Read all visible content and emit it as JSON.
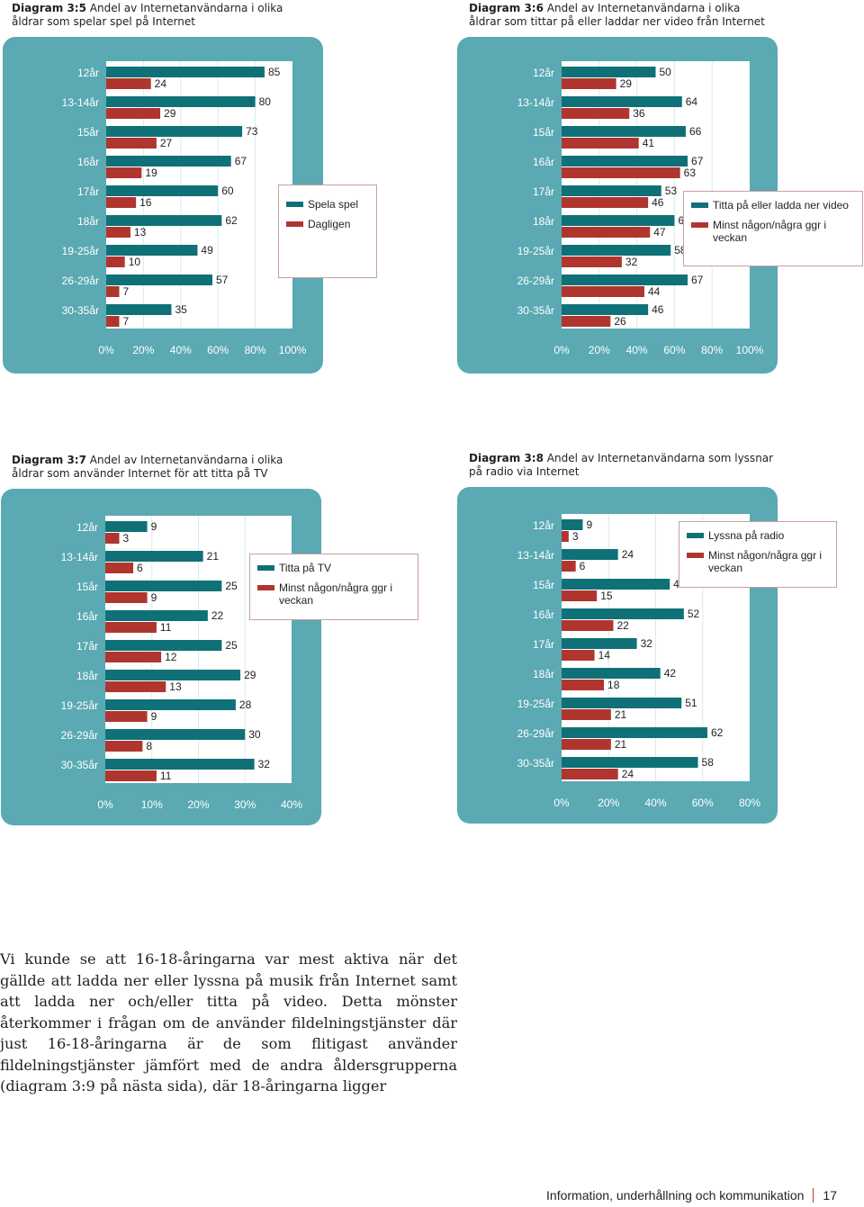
{
  "colors": {
    "panel": "#5aa9b3",
    "plot_bg": "#ffffff",
    "teal": "#0f7177",
    "red": "#b0352f",
    "grid": "#d7ebee"
  },
  "chart_data": [
    {
      "id": "c35",
      "type": "bar",
      "title_bold": "Diagram 3:5",
      "title_rest": " Andel av Internetanvändarna i olika åldrar som spelar spel på Internet",
      "categories": [
        "12år",
        "13-14år",
        "15år",
        "16år",
        "17år",
        "18år",
        "19-25år",
        "26-29år",
        "30-35år"
      ],
      "series": [
        {
          "name": "Spela spel",
          "values": [
            85,
            80,
            73,
            67,
            60,
            62,
            49,
            57,
            35
          ]
        },
        {
          "name": "Dagligen",
          "values": [
            24,
            29,
            27,
            19,
            16,
            13,
            10,
            7,
            7
          ]
        }
      ],
      "xlim": [
        0,
        100
      ],
      "ticks": [
        "0%",
        "20%",
        "40%",
        "60%",
        "80%",
        "100%"
      ],
      "legend_placement": "right"
    },
    {
      "id": "c36",
      "type": "bar",
      "title_bold": "Diagram 3:6",
      "title_rest": " Andel av Internetanvändarna i olika åldrar som tittar på eller laddar ner video från Internet",
      "categories": [
        "12år",
        "13-14år",
        "15år",
        "16år",
        "17år",
        "18år",
        "19-25år",
        "26-29år",
        "30-35år"
      ],
      "series": [
        {
          "name": "Titta på eller ladda ner video",
          "values": [
            50,
            64,
            66,
            67,
            53,
            60,
            58,
            67,
            46
          ]
        },
        {
          "name": "Minst någon/några ggr i veckan",
          "values": [
            29,
            36,
            41,
            63,
            46,
            47,
            32,
            44,
            26
          ]
        }
      ],
      "xlim": [
        0,
        100
      ],
      "ticks": [
        "0%",
        "20%",
        "40%",
        "60%",
        "80%",
        "100%"
      ],
      "legend_placement": "right"
    },
    {
      "id": "c37",
      "type": "bar",
      "title_bold": "Diagram 3:7",
      "title_rest": " Andel av Internetanvändarna i olika åldrar som använder Internet för att titta på TV",
      "categories": [
        "12år",
        "13-14år",
        "15år",
        "16år",
        "17år",
        "18år",
        "19-25år",
        "26-29år",
        "30-35år"
      ],
      "series": [
        {
          "name": "Titta på TV",
          "values": [
            9,
            21,
            25,
            22,
            25,
            29,
            28,
            30,
            32
          ]
        },
        {
          "name": "Minst någon/några ggr i veckan",
          "values": [
            3,
            6,
            9,
            11,
            12,
            13,
            9,
            8,
            11
          ]
        }
      ],
      "xlim": [
        0,
        40
      ],
      "ticks": [
        "0%",
        "10%",
        "20%",
        "30%",
        "40%"
      ],
      "legend_placement": "right"
    },
    {
      "id": "c38",
      "type": "bar",
      "title_bold": "Diagram 3:8",
      "title_rest": " Andel av Internetanvändarna som lyssnar på radio via Internet",
      "categories": [
        "12år",
        "13-14år",
        "15år",
        "16år",
        "17år",
        "18år",
        "19-25år",
        "26-29år",
        "30-35år"
      ],
      "series": [
        {
          "name": "Lyssna på radio",
          "values": [
            9,
            24,
            46,
            52,
            32,
            42,
            51,
            62,
            58
          ]
        },
        {
          "name": "Minst någon/några ggr i veckan",
          "values": [
            3,
            6,
            15,
            22,
            14,
            18,
            21,
            21,
            24
          ]
        }
      ],
      "xlim": [
        0,
        80
      ],
      "ticks": [
        "0%",
        "20%",
        "40%",
        "60%",
        "80%"
      ],
      "legend_placement": "top-right"
    }
  ],
  "body_text": "Vi kunde se att 16-18-åringarna var mest aktiva när det gällde att ladda ner eller lyssna på musik från Internet samt att ladda ner och/eller titta på video. Detta mönster återkommer i frågan om de använder fildelningstjänster där just 16-18-åringarna är de som flitigast använder fildelningstjänster jämfört med de andra åldersgrupperna (diagram 3:9 på nästa sida), där 18-åringarna ligger",
  "footer": {
    "text": "Information, underhållning och kommunikation",
    "page": "17"
  }
}
